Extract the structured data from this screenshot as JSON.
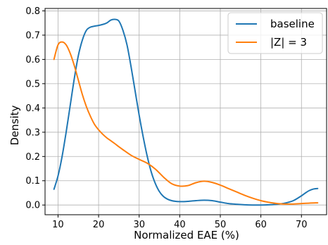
{
  "chart_data": {
    "type": "line",
    "title": "",
    "xlabel": "Normalized EAE (%)",
    "ylabel": "Density",
    "xlim": [
      6.8,
      76.2
    ],
    "ylim": [
      -0.04,
      0.81
    ],
    "x_ticks": [
      10,
      20,
      30,
      40,
      50,
      60,
      70
    ],
    "y_ticks": [
      0.0,
      0.1,
      0.2,
      0.3,
      0.4,
      0.5,
      0.6,
      0.7,
      0.8
    ],
    "x_tick_labels": [
      "10",
      "20",
      "30",
      "40",
      "50",
      "60",
      "70"
    ],
    "y_tick_labels": [
      "0.0",
      "0.1",
      "0.2",
      "0.3",
      "0.4",
      "0.5",
      "0.6",
      "0.7",
      "0.8"
    ],
    "grid": true,
    "legend_position": "top-right",
    "series": [
      {
        "name": "baseline",
        "color": "#1f77b4",
        "x": [
          9,
          10,
          11,
          12,
          13,
          14,
          15,
          16,
          17,
          18,
          19,
          20,
          21,
          22,
          23,
          24,
          25,
          26,
          27,
          28,
          29,
          30,
          31,
          32,
          33,
          34,
          35,
          36,
          37,
          38,
          39,
          40,
          41,
          42,
          44,
          46,
          48,
          50,
          52,
          54,
          56,
          58,
          60,
          62,
          64,
          66,
          68,
          70,
          71,
          72,
          73,
          74
        ],
        "y": [
          0.065,
          0.12,
          0.2,
          0.3,
          0.41,
          0.52,
          0.615,
          0.68,
          0.72,
          0.733,
          0.737,
          0.74,
          0.744,
          0.75,
          0.762,
          0.765,
          0.758,
          0.72,
          0.66,
          0.57,
          0.47,
          0.37,
          0.28,
          0.2,
          0.135,
          0.088,
          0.055,
          0.035,
          0.024,
          0.018,
          0.015,
          0.014,
          0.014,
          0.015,
          0.018,
          0.02,
          0.018,
          0.012,
          0.006,
          0.003,
          0.001,
          0.0,
          0.0,
          0.001,
          0.003,
          0.008,
          0.018,
          0.038,
          0.05,
          0.06,
          0.066,
          0.068
        ]
      },
      {
        "name": "|Z| = 3",
        "color": "#ff7f0e",
        "x": [
          9,
          10,
          11,
          12,
          13,
          14,
          15,
          16,
          17,
          18,
          19,
          20,
          21,
          22,
          23,
          24,
          25,
          26,
          28,
          30,
          32,
          34,
          36,
          38,
          40,
          42,
          44,
          46,
          48,
          50,
          52,
          54,
          56,
          58,
          60,
          62,
          64,
          66,
          68,
          70,
          72,
          74
        ],
        "y": [
          0.6,
          0.66,
          0.672,
          0.66,
          0.625,
          0.575,
          0.515,
          0.455,
          0.405,
          0.365,
          0.332,
          0.31,
          0.292,
          0.277,
          0.265,
          0.253,
          0.24,
          0.228,
          0.205,
          0.188,
          0.172,
          0.148,
          0.115,
          0.088,
          0.078,
          0.08,
          0.092,
          0.098,
          0.093,
          0.082,
          0.068,
          0.054,
          0.04,
          0.028,
          0.018,
          0.011,
          0.006,
          0.004,
          0.004,
          0.006,
          0.008,
          0.009
        ]
      }
    ]
  }
}
